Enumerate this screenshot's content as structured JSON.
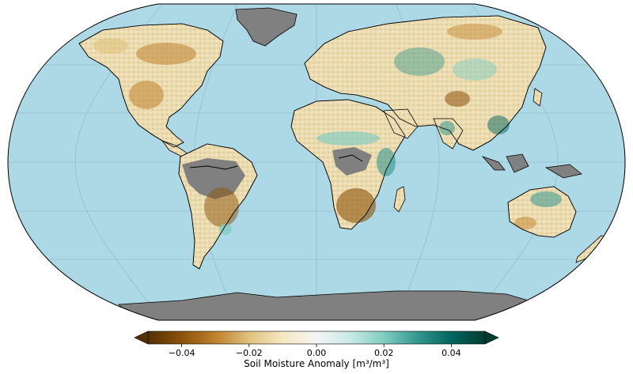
{
  "map": {
    "projection": "robinson",
    "graticule": true,
    "ocean_color": "#add8e6",
    "no_data_color": "#808080",
    "coastline_color": "#000000"
  },
  "colorbar": {
    "label": "Soil Moisture Anomaly [m³/m³]",
    "colormap": "BrBG",
    "min": -0.05,
    "max": 0.05,
    "extend": "both",
    "ticks": [
      -0.04,
      -0.02,
      0.0,
      0.02,
      0.04
    ],
    "tick_labels": [
      "−0.04",
      "−0.02",
      "0.00",
      "0.02",
      "0.04"
    ],
    "stops": [
      "#543005",
      "#8c510a",
      "#bf812d",
      "#dfc27d",
      "#f6e8c3",
      "#f5f5f5",
      "#c7eae5",
      "#80cdc1",
      "#35978f",
      "#01665e",
      "#003c30"
    ]
  }
}
